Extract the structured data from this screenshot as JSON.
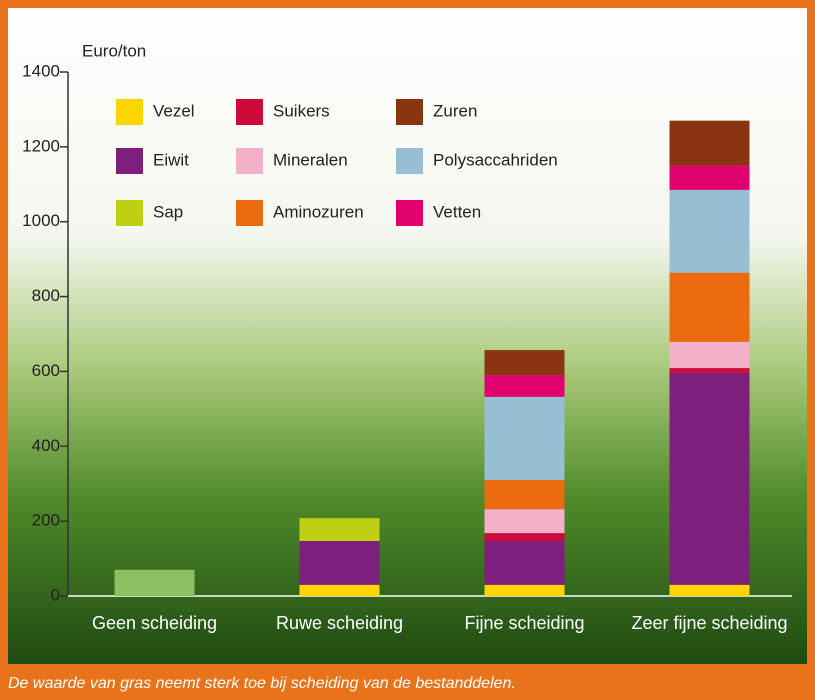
{
  "chart_data": {
    "type": "stacked_bar",
    "ylabel": "Euro/ton",
    "caption": "De waarde van gras neemt sterk toe bij scheiding van de bestanddelen.",
    "categories": [
      "Geen scheiding",
      "Ruwe scheiding",
      "Fijne scheiding",
      "Zeer fijne scheiding"
    ],
    "series": [
      {
        "color": "#8cc063",
        "values": [
          70,
          null,
          null,
          null
        ]
      },
      {
        "name": "Vezel",
        "color": "#ffd500",
        "values": [
          null,
          30,
          30,
          30
        ]
      },
      {
        "name": "Eiwit",
        "color": "#7e1f7e",
        "values": [
          null,
          117,
          117,
          566
        ]
      },
      {
        "name": "Sap",
        "color": "#bfcf14",
        "values": [
          null,
          61,
          null,
          null
        ]
      },
      {
        "name": "Suikers",
        "color": "#cc0a3c",
        "values": [
          null,
          null,
          21,
          13
        ]
      },
      {
        "name": "Mineralen",
        "color": "#f2b1c8",
        "values": [
          null,
          null,
          64,
          70
        ]
      },
      {
        "name": "Aminozuren",
        "color": "#ec6a10",
        "values": [
          null,
          null,
          78,
          185
        ]
      },
      {
        "name": "Polysaccahriden",
        "color": "#96bfd3",
        "values": [
          null,
          null,
          222,
          221
        ]
      },
      {
        "name": "Vetten",
        "color": "#e0006e",
        "values": [
          null,
          null,
          58,
          65
        ]
      },
      {
        "name": "Zuren",
        "color": "#8b3412",
        "values": [
          null,
          null,
          67,
          120
        ]
      }
    ],
    "ylim": [
      0,
      1400
    ],
    "yticks": [
      0,
      200,
      400,
      600,
      800,
      1000,
      1200,
      1400
    ]
  }
}
